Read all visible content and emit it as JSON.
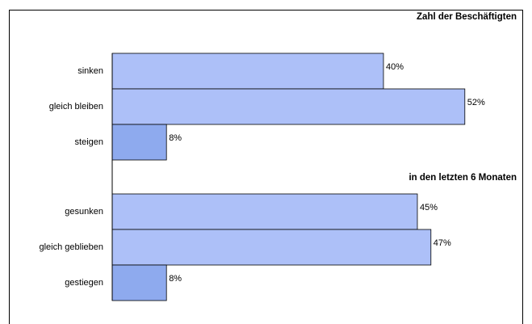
{
  "chart_data": {
    "type": "bar",
    "orientation": "horizontal",
    "xlim": [
      0,
      60
    ],
    "groups": [
      {
        "title": "Zahl der Beschäftigten",
        "categories": [
          "sinken",
          "gleich bleiben",
          "steigen"
        ],
        "values": [
          40,
          52,
          8
        ],
        "value_labels": [
          "40%",
          "52%",
          "8%"
        ],
        "colors": [
          "#adc0f8",
          "#adc0f8",
          "#8eaaee"
        ]
      },
      {
        "title": "in den letzten 6 Monaten",
        "categories": [
          "gesunken",
          "gleich geblieben",
          "gestiegen"
        ],
        "values": [
          45,
          47,
          8
        ],
        "value_labels": [
          "45%",
          "47%",
          "8%"
        ],
        "colors": [
          "#adc0f8",
          "#adc0f8",
          "#8eaaee"
        ]
      }
    ]
  }
}
